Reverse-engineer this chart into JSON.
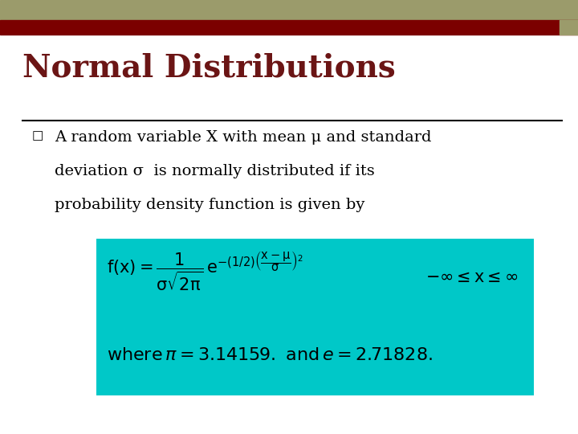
{
  "title": "Normal Distributions",
  "title_fontsize": 28,
  "title_color": "#6B1515",
  "title_font": "serif",
  "bg_color": "#ffffff",
  "header_olive_color": "#9B9B6B",
  "header_red_color": "#7B0000",
  "bullet_text_line1": "A random variable X with mean μ and standard",
  "bullet_text_line2": "deviation σ  is normally distributed if its",
  "bullet_text_line3": "probability density function is given by",
  "bullet_fontsize": 14,
  "bullet_color": "#000000",
  "box_bg_color": "#00C8C8",
  "formula_color": "#000000",
  "formula_fontsize": 15,
  "where_fontsize": 15,
  "line_color": "#000000"
}
